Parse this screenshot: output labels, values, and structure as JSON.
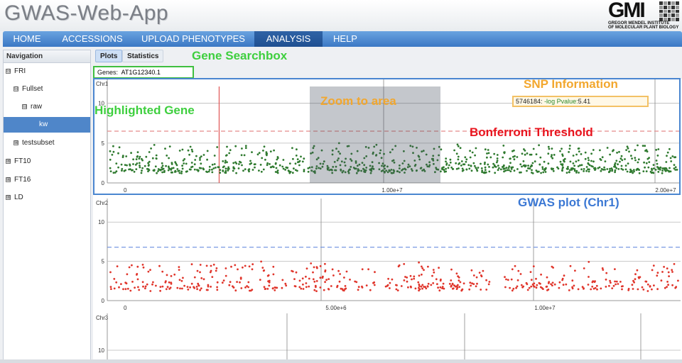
{
  "header": {
    "app_title": "GWAS-Web-App",
    "logo_text": "GMI",
    "logo_sub_line1": "GREGOR MENDEL INSTITUTE",
    "logo_sub_line2": "OF MOLECULAR PLANT BIOLOGY"
  },
  "menu": [
    {
      "label": "HOME"
    },
    {
      "label": "ACCESSIONS"
    },
    {
      "label": "UPLOAD PHENOTYPES"
    },
    {
      "label": "ANALYSIS"
    },
    {
      "label": "HELP"
    }
  ],
  "active_menu": "ANALYSIS",
  "sidebar": {
    "title": "Navigation",
    "items": [
      {
        "label": "FRI",
        "toggle": "⊟"
      },
      {
        "label": "Fullset",
        "toggle": "⊟"
      },
      {
        "label": "raw",
        "toggle": "⊟"
      },
      {
        "label": "kw",
        "toggle": ""
      },
      {
        "label": "testsubset",
        "toggle": "⊞"
      },
      {
        "label": "FT10",
        "toggle": "⊞"
      },
      {
        "label": "FT16",
        "toggle": "⊞"
      },
      {
        "label": "LD",
        "toggle": "⊞"
      }
    ]
  },
  "tabs": [
    {
      "label": "Plots"
    },
    {
      "label": "Statistics"
    }
  ],
  "gene_search": {
    "label": "Genes:",
    "value": "AT1G12340.1"
  },
  "snp_info": {
    "position": "5746184:",
    "pvalue_label": "-log Pvalue:",
    "pvalue": "5.41"
  },
  "annotations": {
    "gene_searchbox": "Gene Searchbox",
    "highlighted_gene": "Highlighted Gene",
    "zoom": "Zoom to area",
    "snp_information": "SNP Information",
    "bonferroni": "Bonferroni Threshold",
    "gwas_plot": "GWAS plot (Chr1)"
  },
  "colors": {
    "chr1_points": "#2f7a2f",
    "chr2_points": "#e0352b",
    "bonferroni_chr1": "#e58b8b",
    "bonferroni_chr2": "#6b8fe0",
    "highlight_gene": "#e05555",
    "annot_green": "#3ecf3e",
    "annot_orange": "#f2a72e",
    "annot_red": "#e8141e",
    "annot_blue": "#3b78d4"
  },
  "chart_data": [
    {
      "type": "scatter",
      "chromosome": "Chr1",
      "x_ticks": [
        "0",
        "1.00e+7",
        "2.00e+7"
      ],
      "y_ticks": [
        "5",
        "10"
      ],
      "bonferroni": 6.5,
      "highlight_position": 4000000,
      "xlim": [
        0,
        20500000
      ],
      "ylim": [
        0,
        13
      ]
    },
    {
      "type": "scatter",
      "chromosome": "Chr2",
      "x_ticks": [
        "0",
        "5.00e+6",
        "1.00e+7"
      ],
      "y_ticks": [
        "5",
        "10"
      ],
      "bonferroni": 6.8,
      "xlim": [
        0,
        16000000
      ],
      "ylim": [
        0,
        13
      ]
    },
    {
      "type": "scatter",
      "chromosome": "Chr3",
      "y_ticks": [
        "10"
      ]
    }
  ]
}
